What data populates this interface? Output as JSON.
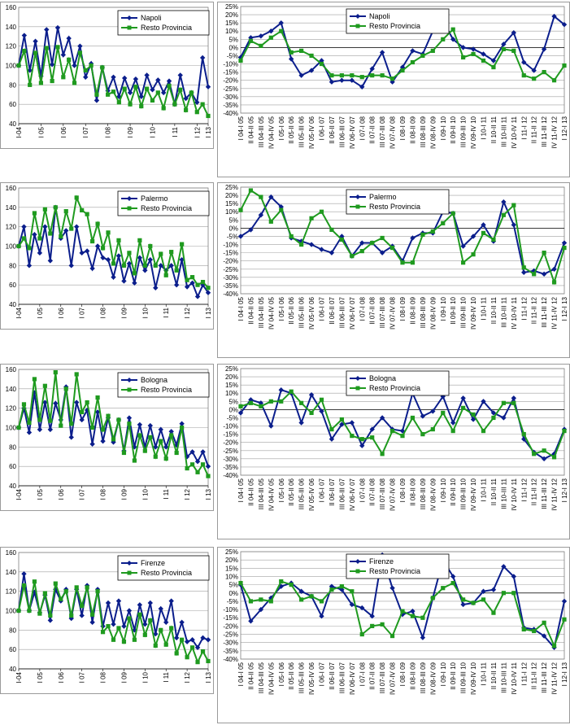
{
  "colors": {
    "city": "#0b1e8c",
    "rest": "#1f9a1f",
    "grid": "#a0a0a0",
    "axis": "#000000"
  },
  "left_xticks": [
    "I-04",
    "I 05",
    "I 06",
    "I 07",
    "I 08",
    "I 09",
    "I 10",
    "I 11",
    "I 12",
    "I 13"
  ],
  "left_yticks": [
    40,
    60,
    80,
    100,
    120,
    140,
    160
  ],
  "right_yticks": [
    "25%",
    "20%",
    "15%",
    "10%",
    "5%",
    "0%",
    "-5%",
    "-10%",
    "-15%",
    "-20%",
    "-25%",
    "-30%",
    "-35%",
    "-40%"
  ],
  "right_xticks_A": [
    "I 04-I 05",
    "II 04-II 05",
    "III 04-III 05",
    "IV 04-IV 05",
    "I 05-I 06",
    "II 05-II 06",
    "III 05-III 06",
    "IV 05-IV 06",
    "I 06-I 07",
    "II 06-II 07",
    "III 06-III 07",
    "IV 06-IV 07",
    "I 07-I 08",
    "II 07-II 08",
    "III 07-III 08",
    "IV 07-IV 08",
    "I 08-I 09",
    "II 08-II 09",
    "III 08-III 09",
    "IV 08-IV 09",
    "I 09-I 10",
    "II 09-II 10",
    "III 09-III 10",
    "IV 09-IV 10",
    "I 10-I 11",
    "II 10-II 11",
    "III 10-III 11",
    "IV 10-IV 11",
    "I 11-I 12",
    "II 11-II 12",
    "III 11-III 12",
    "IV 11-IV 12",
    "I 12-I 13"
  ],
  "right_xticks_B": [
    "I 04-I 05",
    "II 04-II 05",
    "III 04-III 05",
    "IV 04-IV 05",
    "I 05-I 06",
    "II 05-II 06",
    "III 05-III 06",
    "IV 05-IV 06",
    "I 06-I 07",
    "II 06-II 07",
    "III 06-III 07",
    "IV 06-IV 07",
    "I 07-I 08",
    "II 07-II 08",
    "III 07-III 08",
    "IV 07-IV 08",
    "I 08-I 09",
    "II 08-II 09",
    "III 08-III 09",
    "IV 08-IV 09",
    "I 09-I 10",
    "II 09-II 10",
    "III 09-III 10",
    "IV 09-IV 10",
    "I 10-I 11",
    "II 10-II 11",
    "III 10-III 11",
    "IV 10-IV 11",
    "I 11-I 12",
    "II 11-II 12",
    "III 11-III 12",
    "IV 11-IV 12",
    "I 12-I 13"
  ],
  "chart_data": [
    {
      "type": "line",
      "city": "Napoli",
      "panel": "index",
      "ylim": [
        40,
        160
      ],
      "x_tick_labels": [
        "I-04",
        "I 05",
        "I 06",
        "I 07",
        "I 08",
        "I 09",
        "I 10",
        "I 11",
        "I 12",
        "I 13"
      ],
      "series": [
        {
          "name": "Napoli",
          "values": [
            100,
            131,
            95,
            125,
            89,
            137,
            101,
            139,
            111,
            128,
            100,
            120,
            88,
            102,
            64,
            98,
            74,
            88,
            68,
            87,
            72,
            86,
            68,
            90,
            75,
            85,
            72,
            84,
            60,
            90,
            66,
            72,
            62,
            108,
            78
          ]
        },
        {
          "name": "Resto Provincia",
          "values": [
            100,
            115,
            80,
            113,
            82,
            118,
            84,
            119,
            88,
            106,
            82,
            113,
            95,
            100,
            70,
            98,
            70,
            73,
            62,
            76,
            60,
            78,
            58,
            76,
            64,
            72,
            56,
            79,
            60,
            75,
            54,
            72,
            52,
            60,
            48
          ]
        }
      ]
    },
    {
      "type": "line",
      "city": "Napoli",
      "panel": "yoy",
      "ylim": [
        -0.4,
        0.25
      ],
      "series": [
        {
          "name": "Napoli",
          "values": [
            -0.06,
            0.06,
            0.07,
            0.1,
            0.15,
            -0.07,
            -0.17,
            -0.14,
            -0.08,
            -0.21,
            -0.2,
            -0.2,
            -0.24,
            -0.13,
            -0.03,
            -0.21,
            -0.12,
            -0.02,
            -0.04,
            0.1,
            0.16,
            0.05,
            0.0,
            -0.01,
            -0.04,
            -0.08,
            0.02,
            0.09,
            -0.09,
            -0.14,
            -0.01,
            0.19,
            0.14
          ]
        },
        {
          "name": "Resto Provincia",
          "values": [
            -0.08,
            0.04,
            0.01,
            0.06,
            0.1,
            -0.03,
            -0.02,
            -0.05,
            -0.1,
            -0.17,
            -0.17,
            -0.17,
            -0.18,
            -0.17,
            -0.17,
            -0.19,
            -0.14,
            -0.09,
            -0.05,
            -0.02,
            0.05,
            0.11,
            -0.06,
            -0.04,
            -0.08,
            -0.12,
            -0.01,
            -0.02,
            -0.17,
            -0.19,
            -0.15,
            -0.2,
            -0.11
          ]
        }
      ]
    },
    {
      "type": "line",
      "city": "Palermo",
      "panel": "index",
      "ylim": [
        40,
        160
      ],
      "series": [
        {
          "name": "Palermo",
          "values": [
            100,
            120,
            80,
            112,
            93,
            120,
            85,
            140,
            108,
            116,
            80,
            120,
            93,
            95,
            77,
            100,
            88,
            86,
            68,
            90,
            64,
            82,
            62,
            88,
            75,
            86,
            57,
            80,
            75,
            80,
            60,
            86,
            58,
            62,
            48,
            60,
            52
          ]
        },
        {
          "name": "Resto Provincia",
          "values": [
            100,
            108,
            98,
            134,
            108,
            138,
            113,
            140,
            110,
            136,
            118,
            150,
            137,
            133,
            105,
            123,
            98,
            114,
            82,
            106,
            80,
            93,
            72,
            106,
            80,
            100,
            80,
            92,
            70,
            94,
            75,
            102,
            65,
            68,
            60,
            63,
            57
          ]
        }
      ]
    },
    {
      "type": "line",
      "city": "Palermo",
      "panel": "yoy",
      "ylim": [
        -0.4,
        0.25
      ],
      "series": [
        {
          "name": "Palermo",
          "values": [
            -0.05,
            -0.01,
            0.08,
            0.19,
            0.13,
            -0.06,
            -0.08,
            -0.1,
            -0.13,
            -0.15,
            -0.05,
            -0.17,
            -0.09,
            -0.09,
            -0.15,
            -0.11,
            -0.2,
            -0.06,
            -0.03,
            -0.03,
            0.1,
            0.09,
            -0.11,
            -0.05,
            0.02,
            -0.08,
            0.16,
            0.02,
            -0.27,
            -0.26,
            -0.28,
            -0.25,
            -0.09
          ]
        },
        {
          "name": "Resto Provincia",
          "values": [
            0.11,
            0.23,
            0.19,
            0.04,
            0.11,
            -0.05,
            -0.1,
            0.06,
            0.1,
            -0.01,
            -0.07,
            -0.17,
            -0.14,
            -0.09,
            -0.06,
            -0.12,
            -0.21,
            -0.21,
            -0.04,
            -0.02,
            0.03,
            0.09,
            -0.21,
            -0.16,
            -0.03,
            -0.07,
            0.08,
            0.14,
            -0.24,
            -0.28,
            -0.15,
            -0.33,
            -0.12
          ]
        }
      ]
    },
    {
      "type": "line",
      "city": "Bologna",
      "panel": "index",
      "ylim": [
        40,
        160
      ],
      "series": [
        {
          "name": "Bologna",
          "values": [
            100,
            120,
            95,
            136,
            98,
            126,
            98,
            125,
            108,
            142,
            90,
            126,
            108,
            118,
            83,
            116,
            86,
            110,
            85,
            108,
            76,
            110,
            80,
            103,
            80,
            102,
            80,
            98,
            80,
            96,
            82,
            104,
            70,
            75,
            65,
            75,
            60
          ]
        },
        {
          "name": "Resto Provincia",
          "values": [
            100,
            124,
            105,
            150,
            108,
            143,
            107,
            157,
            102,
            140,
            104,
            155,
            116,
            126,
            100,
            131,
            98,
            112,
            88,
            108,
            74,
            104,
            66,
            92,
            76,
            90,
            70,
            86,
            68,
            92,
            74,
            100,
            58,
            62,
            54,
            62,
            50
          ]
        }
      ]
    },
    {
      "type": "line",
      "city": "Bologna",
      "panel": "yoy",
      "ylim": [
        -0.4,
        0.25
      ],
      "series": [
        {
          "name": "Bologna",
          "values": [
            -0.02,
            0.06,
            0.04,
            -0.1,
            0.12,
            0.1,
            -0.08,
            0.09,
            -0.01,
            -0.18,
            -0.09,
            -0.08,
            -0.22,
            -0.12,
            -0.05,
            -0.12,
            -0.13,
            0.1,
            -0.04,
            -0.01,
            0.08,
            -0.08,
            0.07,
            -0.06,
            0.05,
            -0.02,
            -0.05,
            0.07,
            -0.18,
            -0.26,
            -0.3,
            -0.27,
            -0.12
          ]
        },
        {
          "name": "Resto Provincia",
          "values": [
            0.02,
            0.04,
            0.02,
            0.05,
            0.05,
            0.11,
            0.04,
            -0.02,
            0.06,
            -0.12,
            -0.06,
            -0.16,
            -0.18,
            -0.17,
            -0.27,
            -0.13,
            -0.16,
            -0.05,
            -0.15,
            -0.12,
            -0.02,
            -0.13,
            0.01,
            -0.03,
            -0.13,
            -0.05,
            0.04,
            0.04,
            -0.15,
            -0.27,
            -0.25,
            -0.29,
            -0.13
          ]
        }
      ]
    },
    {
      "type": "line",
      "city": "Firenze",
      "panel": "index",
      "ylim": [
        40,
        160
      ],
      "series": [
        {
          "name": "Firenze",
          "values": [
            100,
            138,
            100,
            119,
            98,
            116,
            90,
            122,
            110,
            122,
            92,
            122,
            95,
            126,
            88,
            122,
            84,
            108,
            86,
            110,
            84,
            100,
            80,
            106,
            86,
            108,
            76,
            102,
            88,
            110,
            72,
            88,
            68,
            70,
            62,
            72,
            70
          ]
        },
        {
          "name": "Resto Provincia",
          "values": [
            100,
            126,
            100,
            130,
            97,
            118,
            95,
            128,
            112,
            120,
            95,
            124,
            105,
            124,
            96,
            120,
            78,
            84,
            70,
            82,
            68,
            92,
            70,
            96,
            75,
            90,
            64,
            80,
            65,
            82,
            56,
            70,
            52,
            62,
            47,
            58,
            48
          ]
        }
      ]
    },
    {
      "type": "line",
      "city": "Firenze",
      "panel": "yoy",
      "ylim": [
        -0.4,
        0.25
      ],
      "series": [
        {
          "name": "Firenze",
          "values": [
            0.05,
            -0.17,
            -0.1,
            -0.03,
            0.04,
            0.06,
            0.01,
            -0.02,
            -0.14,
            0.04,
            0.02,
            -0.07,
            -0.09,
            -0.14,
            0.23,
            0.03,
            -0.13,
            -0.11,
            -0.27,
            -0.03,
            0.2,
            0.1,
            -0.07,
            -0.06,
            0.01,
            0.02,
            0.16,
            0.1,
            -0.21,
            -0.22,
            -0.26,
            -0.33,
            -0.05
          ]
        },
        {
          "name": "Resto Provincia",
          "values": [
            0.06,
            -0.05,
            -0.04,
            -0.05,
            0.07,
            0.05,
            -0.04,
            -0.02,
            -0.05,
            0.02,
            0.04,
            0.01,
            -0.25,
            -0.2,
            -0.19,
            -0.26,
            -0.11,
            -0.14,
            -0.15,
            -0.03,
            0.03,
            0.06,
            -0.04,
            -0.06,
            -0.04,
            -0.12,
            0.0,
            0.0,
            -0.22,
            -0.23,
            -0.18,
            -0.32,
            -0.16
          ]
        }
      ]
    }
  ]
}
